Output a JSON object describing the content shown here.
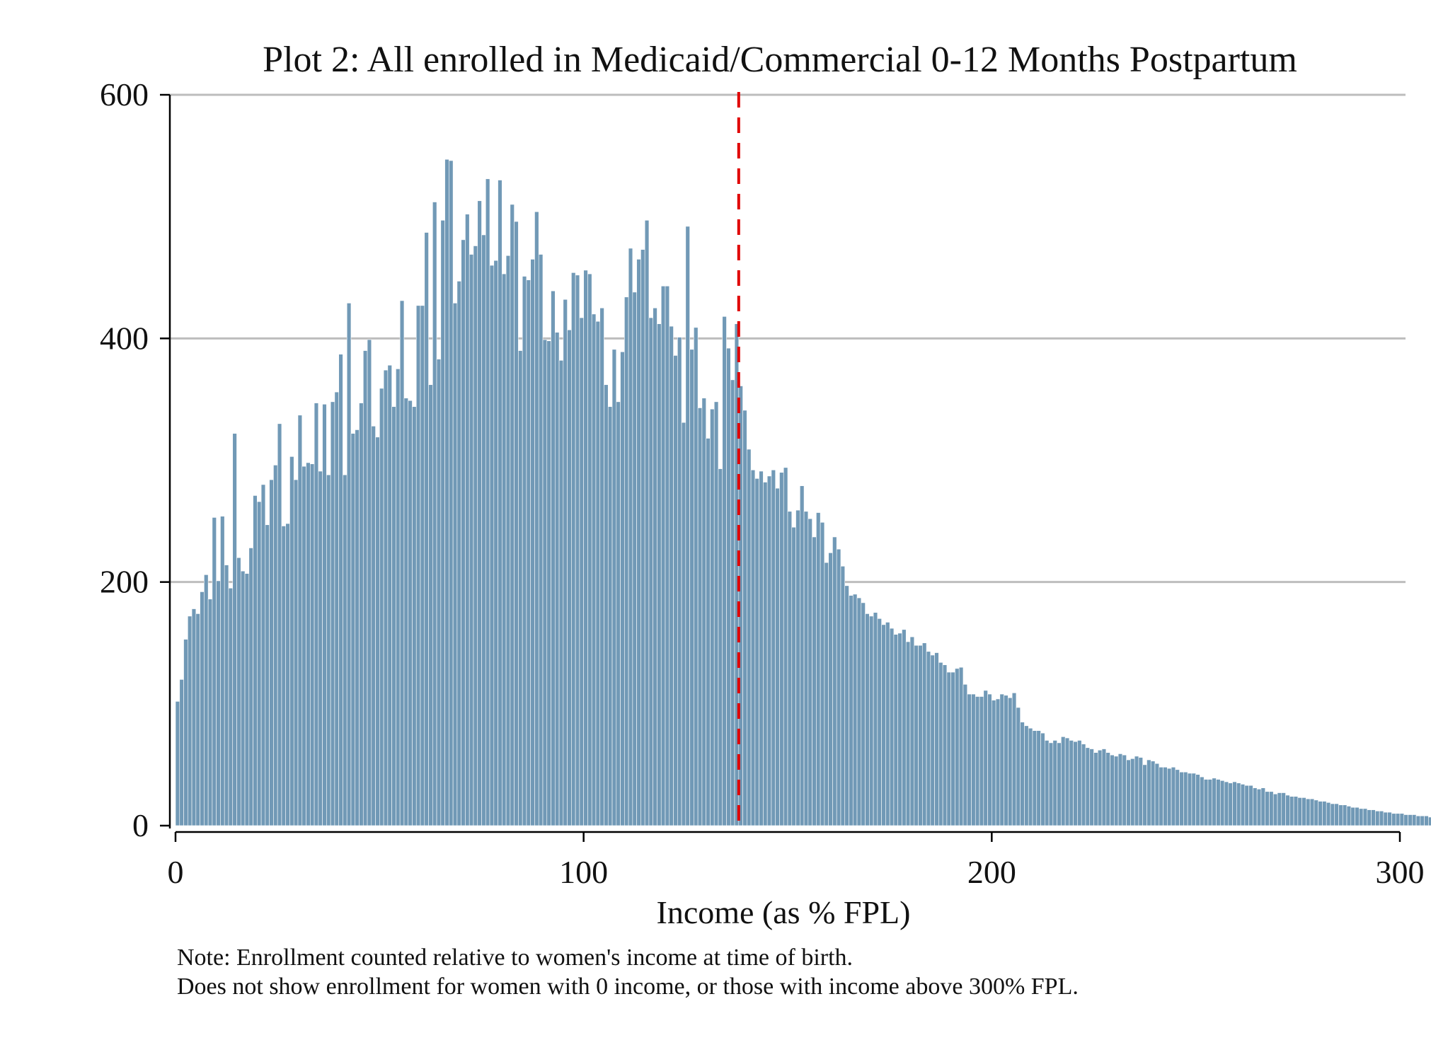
{
  "chart_data": {
    "type": "bar",
    "title": "Plot 2: All enrolled in Medicaid/Commercial 0-12 Months Postpartum",
    "xlabel": "Income (as % FPL)",
    "ylabel": "",
    "xlim": [
      0,
      300
    ],
    "ylim": [
      0,
      600
    ],
    "xticks": [
      0,
      100,
      200,
      300
    ],
    "yticks": [
      0,
      200,
      400,
      600
    ],
    "grid": true,
    "bar_color": "#7199b6",
    "reference_line": {
      "x": 138,
      "color": "#e00000",
      "style": "dashed"
    },
    "bin_width": 1,
    "x_start": 1,
    "values": [
      102,
      120,
      153,
      172,
      178,
      174,
      192,
      206,
      186,
      253,
      201,
      254,
      214,
      195,
      322,
      220,
      209,
      207,
      228,
      271,
      266,
      280,
      247,
      284,
      296,
      330,
      246,
      248,
      303,
      284,
      337,
      295,
      298,
      297,
      347,
      291,
      346,
      288,
      348,
      356,
      387,
      288,
      429,
      322,
      325,
      347,
      390,
      399,
      328,
      319,
      359,
      374,
      378,
      344,
      375,
      431,
      351,
      349,
      344,
      427,
      427,
      487,
      362,
      512,
      383,
      497,
      547,
      546,
      429,
      447,
      481,
      502,
      469,
      476,
      513,
      485,
      531,
      460,
      464,
      530,
      453,
      468,
      510,
      496,
      390,
      451,
      448,
      465,
      504,
      469,
      399,
      398,
      439,
      405,
      382,
      432,
      407,
      454,
      452,
      417,
      456,
      453,
      420,
      414,
      425,
      362,
      344,
      391,
      348,
      389,
      434,
      474,
      438,
      465,
      473,
      497,
      417,
      425,
      412,
      443,
      443,
      410,
      386,
      401,
      331,
      492,
      391,
      409,
      343,
      351,
      318,
      342,
      348,
      293,
      418,
      392,
      366,
      412,
      361,
      341,
      309,
      292,
      285,
      291,
      282,
      287,
      292,
      277,
      290,
      294,
      258,
      245,
      259,
      279,
      258,
      252,
      237,
      257,
      249,
      216,
      224,
      237,
      227,
      213,
      197,
      189,
      190,
      187,
      183,
      174,
      172,
      175,
      170,
      165,
      167,
      162,
      157,
      158,
      161,
      151,
      155,
      148,
      148,
      150,
      143,
      140,
      142,
      134,
      132,
      126,
      126,
      129,
      130,
      116,
      108,
      108,
      106,
      106,
      111,
      108,
      103,
      104,
      108,
      107,
      105,
      109,
      97,
      85,
      82,
      80,
      78,
      78,
      76,
      70,
      68,
      70,
      68,
      73,
      72,
      70,
      69,
      70,
      67,
      64,
      63,
      60,
      62,
      63,
      60,
      58,
      57,
      59,
      58,
      54,
      55,
      57,
      56,
      50,
      54,
      53,
      51,
      48,
      48,
      47,
      48,
      46,
      44,
      44,
      43,
      43,
      42,
      40,
      38,
      38,
      39,
      38,
      37,
      36,
      35,
      36,
      35,
      34,
      33,
      33,
      31,
      30,
      31,
      28,
      28,
      26,
      27,
      27,
      25,
      24,
      24,
      23,
      23,
      22,
      22,
      21,
      20,
      20,
      19,
      18,
      18,
      17,
      17,
      16,
      15,
      15,
      14,
      14,
      13,
      13,
      12,
      12,
      11,
      11,
      10,
      10,
      10,
      9,
      9,
      9,
      8,
      8,
      8,
      7,
      7,
      7,
      7,
      6,
      6,
      6,
      6,
      5,
      5,
      5,
      5,
      5,
      4,
      4,
      4,
      4,
      4,
      4,
      3,
      3,
      3,
      3,
      3,
      3,
      3,
      3,
      3,
      3
    ]
  },
  "note": {
    "line1": "Note: Enrollment counted relative to women's income at time of birth.",
    "line2": "Does not show enrollment for women with 0 income, or those with income above 300% FPL."
  }
}
